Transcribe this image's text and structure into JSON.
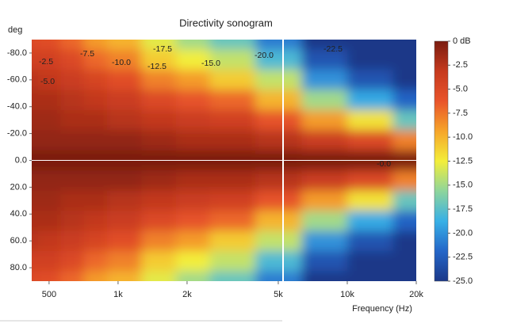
{
  "chart_data": {
    "type": "heatmap",
    "title": "Directivity sonogram",
    "ylabel": "deg",
    "xlabel": "Frequency (Hz)",
    "x": [
      400,
      500,
      630,
      800,
      1000,
      1600,
      2000,
      3150,
      5000,
      8000,
      12500,
      20000
    ],
    "y": [
      -90,
      -75,
      -60,
      -45,
      -30,
      -15,
      0,
      15,
      30,
      45,
      60,
      75,
      90
    ],
    "z": [
      [
        -5,
        -5.5,
        -7,
        -9,
        -10,
        -13,
        -15,
        -17,
        -21,
        -25,
        -25,
        -25
      ],
      [
        -4,
        -4,
        -5,
        -7,
        -8,
        -11,
        -12.5,
        -14,
        -18,
        -23,
        -25,
        -25
      ],
      [
        -2.5,
        -3,
        -3.5,
        -4.5,
        -5.5,
        -8,
        -9,
        -11,
        -14,
        -20,
        -23,
        -25
      ],
      [
        -2,
        -2,
        -2.5,
        -3,
        -3.5,
        -5,
        -6,
        -7,
        -10,
        -15,
        -19,
        -22
      ],
      [
        -1.5,
        -1.5,
        -2,
        -2,
        -2.5,
        -3,
        -3.5,
        -4,
        -6,
        -9,
        -12,
        -17
      ],
      [
        -1,
        -1,
        -1,
        -1,
        -1,
        -1.5,
        -2,
        -2,
        -2.5,
        -3.5,
        -5,
        -8
      ],
      [
        0,
        0,
        0,
        0,
        0,
        0,
        0,
        0,
        0,
        0,
        0,
        0
      ],
      [
        -1,
        -1,
        -1,
        -1,
        -1,
        -1.5,
        -2,
        -2,
        -2.5,
        -3.5,
        -5,
        -8
      ],
      [
        -1.5,
        -1.5,
        -2,
        -2,
        -2.5,
        -3,
        -3.5,
        -4,
        -6,
        -9,
        -12,
        -17
      ],
      [
        -2,
        -2,
        -2.5,
        -3,
        -3.5,
        -5,
        -6,
        -7,
        -10,
        -15,
        -19,
        -22
      ],
      [
        -2.5,
        -3,
        -3.5,
        -4.5,
        -5.5,
        -8,
        -9,
        -11,
        -14,
        -20,
        -23,
        -25
      ],
      [
        -4,
        -4,
        -5,
        -7,
        -8,
        -11,
        -12.5,
        -14,
        -18,
        -23,
        -25,
        -25
      ],
      [
        -5,
        -5.5,
        -7,
        -9,
        -10,
        -13,
        -15,
        -17,
        -21,
        -25,
        -25,
        -25
      ]
    ],
    "xlim": [
      420,
      20000
    ],
    "log_x": true,
    "xticks": [
      500,
      {
        "value": 1000,
        "label": "1k"
      },
      {
        "value": 2000,
        "label": "2k"
      },
      {
        "value": 5000,
        "label": "5k"
      },
      {
        "value": 10000,
        "label": "10k"
      },
      {
        "value": 20000,
        "label": "20k"
      }
    ],
    "ylim": [
      -90,
      90
    ],
    "yticks": [
      {
        "value": -80,
        "label": "-80.0"
      },
      {
        "value": -60,
        "label": "-60.0"
      },
      {
        "value": -40,
        "label": "-40.0"
      },
      {
        "value": -20,
        "label": "-20.0"
      },
      {
        "value": 0,
        "label": "0.0"
      },
      {
        "value": 20,
        "label": "20.0"
      },
      {
        "value": 40,
        "label": "40.0"
      },
      {
        "value": 60,
        "label": "60.0"
      },
      {
        "value": 80,
        "label": "80.0"
      }
    ],
    "zlim": [
      -25,
      0
    ],
    "colorscale": [
      "#1b3888",
      "#2466c8",
      "#38b0e6",
      "#8ed59c",
      "#f3ee3a",
      "#f6a52a",
      "#e9542b",
      "#c63a1e",
      "#7a1c10"
    ],
    "colorbar_ticks": [
      {
        "value": 0,
        "label": "0 dB"
      },
      -2.5,
      {
        "value": -5,
        "label": "-5.0"
      },
      -7.5,
      {
        "value": -10,
        "label": "-10.0"
      },
      -12.5,
      {
        "value": -15,
        "label": "-15.0"
      },
      -17.5,
      {
        "value": -20,
        "label": "-20.0"
      },
      -22.5,
      {
        "value": -25,
        "label": "-25.0"
      }
    ],
    "contour_labels": [
      "-2.5",
      "-5.0",
      "-7.5",
      "-10.0",
      "-12.5",
      "-15.0",
      "-17.5",
      "-20.0",
      "-22.5",
      "-0.0"
    ]
  }
}
